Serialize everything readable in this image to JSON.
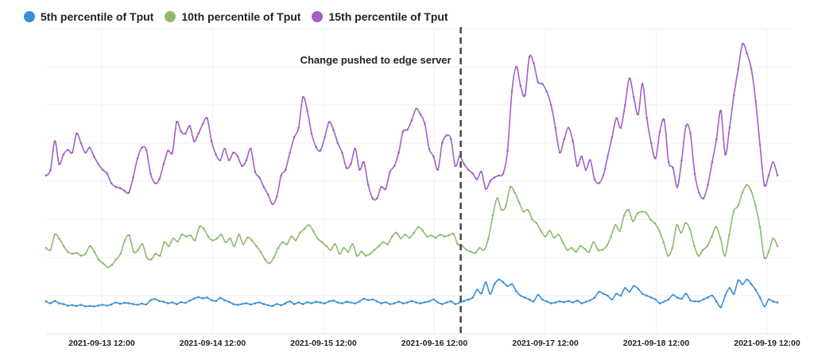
{
  "chart_data": {
    "type": "line",
    "title": "",
    "xlabel": "",
    "ylabel": "",
    "grid": true,
    "legend_position": "top-left",
    "x_ticks": [
      "2021-09-13 12:00",
      "2021-09-14 12:00",
      "2021-09-15 12:00",
      "2021-09-16 12:00",
      "2021-09-17 12:00",
      "2021-09-18 12:00",
      "2021-09-19 12:00"
    ],
    "annotation": {
      "text": "Change pushed to edge server",
      "x_fraction": 0.567
    },
    "y_domain": [
      0,
      8
    ],
    "series": [
      {
        "name": "5th percentile of Tput",
        "color": "#3a8fd9",
        "values": [
          0.85,
          0.8,
          0.86,
          0.8,
          0.78,
          0.74,
          0.75,
          0.73,
          0.76,
          0.72,
          0.73,
          0.72,
          0.74,
          0.76,
          0.74,
          0.77,
          0.82,
          0.79,
          0.81,
          0.8,
          0.78,
          0.76,
          0.79,
          0.77,
          0.88,
          0.91,
          0.86,
          0.84,
          0.8,
          0.82,
          0.78,
          0.83,
          0.81,
          0.87,
          0.92,
          0.96,
          0.93,
          0.95,
          0.88,
          0.86,
          0.94,
          0.88,
          0.84,
          0.78,
          0.76,
          0.78,
          0.8,
          0.77,
          0.8,
          0.82,
          0.78,
          0.75,
          0.73,
          0.78,
          0.75,
          0.8,
          0.85,
          0.78,
          0.82,
          0.78,
          0.83,
          0.8,
          0.84,
          0.82,
          0.8,
          0.85,
          0.87,
          0.82,
          0.8,
          0.84,
          0.82,
          0.8,
          0.85,
          0.92,
          0.88,
          0.9,
          0.85,
          0.8,
          0.83,
          0.78,
          0.8,
          0.84,
          0.8,
          0.82,
          0.86,
          0.82,
          0.8,
          0.83,
          0.85,
          0.9,
          0.82,
          0.78,
          0.82,
          0.85,
          0.78,
          0.82,
          0.86,
          0.9,
          0.95,
          1.15,
          1.06,
          1.35,
          1.05,
          1.3,
          1.42,
          1.35,
          1.25,
          1.3,
          1.12,
          1.0,
          0.95,
          0.9,
          0.85,
          1.02,
          0.9,
          0.85,
          0.8,
          0.82,
          0.85,
          0.83,
          0.86,
          0.82,
          0.87,
          0.8,
          0.84,
          0.88,
          0.95,
          1.1,
          1.05,
          1.0,
          0.9,
          1.05,
          1.0,
          1.2,
          1.1,
          1.25,
          1.18,
          1.05,
          1.0,
          0.95,
          0.9,
          0.8,
          0.85,
          0.9,
          1.02,
          0.95,
          0.92,
          1.05,
          0.88,
          0.85,
          0.85,
          0.9,
          0.95,
          1.0,
          0.85,
          0.7,
          1.0,
          1.2,
          1.05,
          1.4,
          1.3,
          1.42,
          1.3,
          1.15,
          0.95,
          0.72,
          0.9,
          0.85,
          0.82
        ]
      },
      {
        "name": "10th percentile of Tput",
        "color": "#8fba6e",
        "values": [
          2.25,
          2.2,
          2.6,
          2.5,
          2.3,
          2.15,
          2.1,
          2.12,
          2.05,
          2.1,
          2.3,
          2.15,
          1.95,
          1.85,
          1.75,
          1.8,
          1.95,
          2.1,
          2.45,
          2.58,
          2.15,
          2.2,
          2.35,
          2.0,
          1.95,
          2.1,
          2.05,
          2.4,
          2.3,
          2.5,
          2.42,
          2.6,
          2.55,
          2.58,
          2.45,
          2.8,
          2.75,
          2.55,
          2.45,
          2.5,
          2.6,
          2.4,
          2.5,
          2.3,
          2.6,
          2.35,
          2.52,
          2.45,
          2.3,
          2.15,
          1.95,
          1.85,
          2.0,
          2.25,
          2.4,
          2.35,
          2.55,
          2.45,
          2.65,
          2.75,
          2.85,
          2.7,
          2.5,
          2.4,
          2.3,
          2.2,
          2.35,
          2.1,
          2.25,
          2.15,
          2.35,
          2.05,
          2.15,
          2.05,
          2.1,
          2.2,
          2.3,
          2.4,
          2.35,
          2.55,
          2.65,
          2.5,
          2.6,
          2.52,
          2.65,
          2.8,
          2.7,
          2.55,
          2.58,
          2.52,
          2.6,
          2.55,
          2.58,
          2.62,
          2.35,
          2.3,
          2.2,
          2.15,
          2.12,
          2.25,
          2.2,
          2.5,
          3.1,
          3.55,
          3.25,
          3.35,
          3.85,
          3.7,
          3.45,
          3.2,
          3.25,
          3.0,
          2.9,
          2.7,
          2.55,
          2.7,
          2.52,
          2.6,
          2.4,
          2.2,
          2.25,
          2.15,
          2.3,
          2.22,
          2.15,
          2.4,
          2.2,
          2.2,
          2.3,
          2.55,
          2.85,
          2.7,
          3.1,
          3.25,
          2.95,
          3.15,
          3.2,
          3.18,
          3.0,
          2.9,
          2.7,
          2.4,
          2.05,
          2.25,
          2.85,
          2.65,
          2.9,
          2.75,
          2.3,
          2.05,
          2.2,
          2.3,
          2.55,
          2.8,
          2.5,
          2.05,
          2.6,
          3.2,
          3.35,
          3.7,
          3.9,
          3.75,
          3.35,
          2.8,
          2.0,
          2.15,
          2.5,
          2.3
        ]
      },
      {
        "name": "15th percentile of Tput",
        "color": "#a35ec8",
        "values": [
          4.15,
          4.3,
          5.05,
          4.45,
          4.7,
          4.82,
          4.75,
          5.25,
          5.0,
          4.75,
          4.88,
          4.65,
          4.45,
          4.3,
          4.2,
          3.95,
          3.85,
          3.82,
          3.75,
          3.7,
          4.1,
          4.6,
          4.88,
          4.82,
          4.2,
          3.95,
          4.05,
          4.45,
          4.8,
          4.75,
          5.55,
          5.3,
          5.25,
          5.45,
          5.05,
          5.25,
          5.5,
          5.65,
          5.05,
          4.7,
          4.55,
          4.85,
          4.55,
          4.75,
          4.65,
          4.4,
          4.55,
          4.85,
          4.25,
          4.1,
          3.85,
          3.65,
          3.4,
          3.6,
          4.15,
          4.3,
          4.75,
          5.15,
          5.4,
          6.2,
          5.85,
          5.25,
          4.9,
          4.8,
          5.15,
          5.55,
          5.35,
          5.0,
          4.75,
          4.35,
          4.45,
          4.85,
          4.3,
          4.5,
          3.9,
          3.55,
          3.55,
          3.85,
          3.8,
          4.25,
          4.4,
          4.75,
          5.3,
          5.35,
          5.6,
          5.9,
          5.75,
          5.5,
          4.85,
          4.65,
          4.3,
          5.0,
          5.2,
          5.1,
          4.4,
          4.65,
          4.45,
          4.3,
          4.2,
          4.05,
          4.25,
          3.8,
          4.0,
          4.1,
          4.15,
          4.2,
          4.8,
          6.35,
          7.0,
          6.5,
          6.25,
          7.25,
          7.1,
          6.6,
          6.55,
          6.35,
          6.0,
          5.4,
          4.75,
          5.1,
          5.4,
          5.05,
          4.4,
          4.65,
          4.3,
          4.55,
          4.05,
          3.95,
          4.15,
          4.65,
          5.15,
          5.65,
          5.4,
          6.0,
          6.7,
          6.2,
          5.75,
          6.55,
          5.65,
          5.0,
          4.6,
          5.3,
          5.6,
          4.5,
          4.35,
          3.85,
          4.55,
          5.45,
          5.25,
          4.2,
          3.7,
          3.55,
          3.9,
          4.5,
          5.1,
          5.85,
          4.7,
          5.4,
          6.25,
          6.95,
          7.6,
          7.35,
          6.95,
          6.1,
          4.95,
          3.9,
          4.15,
          4.5,
          4.15
        ]
      }
    ]
  }
}
